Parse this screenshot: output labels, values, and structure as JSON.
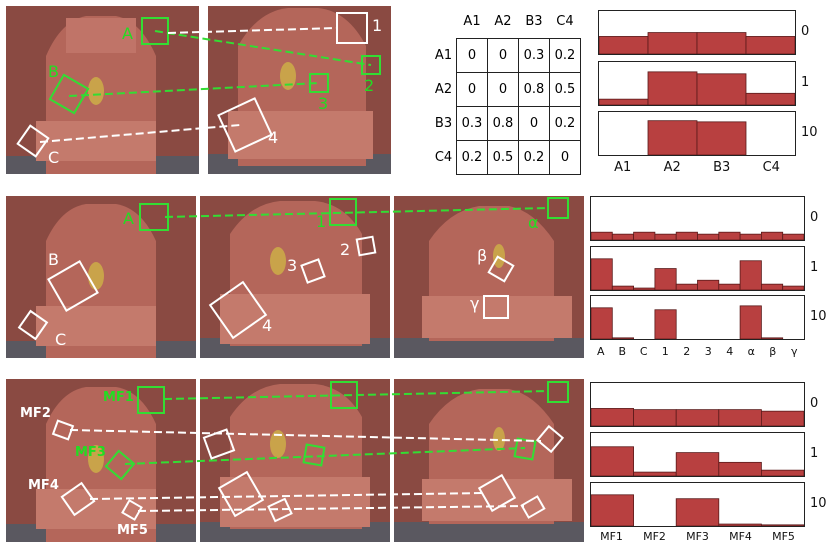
{
  "colors": {
    "bar": "#b84040",
    "wall": "#8a4a42",
    "green": "#33dd33",
    "white": "#ffffff"
  },
  "row1": {
    "labels_left": [
      "A",
      "B",
      "C"
    ],
    "labels_right": [
      "1",
      "2",
      "3",
      "4"
    ],
    "matrix": {
      "col_headers": [
        "A1",
        "A2",
        "B3",
        "C4"
      ],
      "rows": [
        {
          "label": "A1",
          "values": [
            "0",
            "0",
            "0.3",
            "0.2"
          ]
        },
        {
          "label": "A2",
          "values": [
            "0",
            "0",
            "0.8",
            "0.5"
          ]
        },
        {
          "label": "B3",
          "values": [
            "0.3",
            "0.8",
            "0",
            "0.2"
          ]
        },
        {
          "label": "C4",
          "values": [
            "0.2",
            "0.5",
            "0.2",
            "0"
          ]
        }
      ]
    }
  },
  "row2": {
    "labels_left": [
      "A",
      "B",
      "C"
    ],
    "labels_mid": [
      "1",
      "2",
      "3",
      "4"
    ],
    "labels_right": [
      "α",
      "β",
      "γ"
    ]
  },
  "row3": {
    "labels": [
      "MF1",
      "MF2",
      "MF3",
      "MF4",
      "MF5"
    ]
  },
  "chart_data": [
    {
      "type": "bar",
      "categories": [
        "A1",
        "A2",
        "B3",
        "C4"
      ],
      "series": [
        {
          "name": "0",
          "values": [
            0.45,
            0.55,
            0.55,
            0.45
          ]
        },
        {
          "name": "1",
          "values": [
            0.15,
            0.85,
            0.8,
            0.3
          ]
        },
        {
          "name": "10",
          "values": [
            0.0,
            0.88,
            0.85,
            0.0
          ]
        }
      ],
      "ylim": [
        0,
        1
      ]
    },
    {
      "type": "bar",
      "categories": [
        "A",
        "B",
        "C",
        "1",
        "2",
        "3",
        "4",
        "α",
        "β",
        "γ"
      ],
      "series": [
        {
          "name": "0",
          "values": [
            0.2,
            0.15,
            0.2,
            0.15,
            0.2,
            0.15,
            0.2,
            0.15,
            0.2,
            0.15
          ]
        },
        {
          "name": "1",
          "values": [
            0.8,
            0.1,
            0.05,
            0.55,
            0.15,
            0.25,
            0.15,
            0.75,
            0.15,
            0.1
          ]
        },
        {
          "name": "10",
          "values": [
            0.8,
            0.03,
            0.0,
            0.75,
            0.0,
            0.0,
            0.0,
            0.85,
            0.03,
            0.0
          ]
        }
      ],
      "ylim": [
        0,
        1
      ]
    },
    {
      "type": "bar",
      "categories": [
        "MF1",
        "MF2",
        "MF3",
        "MF4",
        "MF5"
      ],
      "series": [
        {
          "name": "0",
          "values": [
            0.45,
            0.42,
            0.42,
            0.42,
            0.38
          ]
        },
        {
          "name": "1",
          "values": [
            0.75,
            0.1,
            0.6,
            0.35,
            0.15
          ]
        },
        {
          "name": "10",
          "values": [
            0.8,
            0.0,
            0.7,
            0.05,
            0.03
          ]
        }
      ],
      "ylim": [
        0,
        1
      ]
    }
  ]
}
